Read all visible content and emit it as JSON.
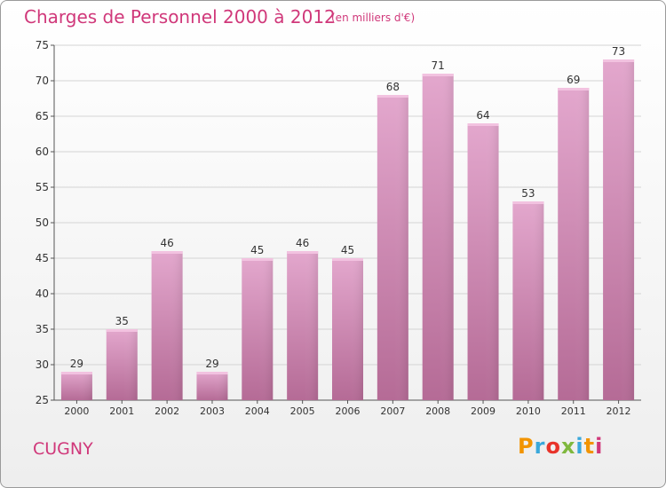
{
  "header": {
    "title": "Charges de Personnel 2000 à 2012",
    "subtitle": "(en milliers d'€)"
  },
  "commune": "CUGNY",
  "logo": {
    "text": "Proxiti",
    "colors": [
      "#f29400",
      "#3aa8db",
      "#e8332a",
      "#7fb83e",
      "#3aa8db",
      "#f29400",
      "#d0387a"
    ]
  },
  "colors": {
    "bar_light": "#f2c2e0",
    "bar_mid": "#e3a7cd",
    "bar_dark": "#b56b96",
    "text_accent": "#d0387a"
  },
  "chart_data": {
    "type": "bar",
    "categories": [
      "2000",
      "2001",
      "2002",
      "2003",
      "2004",
      "2005",
      "2006",
      "2007",
      "2008",
      "2009",
      "2010",
      "2011",
      "2012"
    ],
    "values": [
      29,
      35,
      46,
      29,
      45,
      46,
      45,
      68,
      71,
      64,
      53,
      69,
      73
    ],
    "ylim": [
      25,
      75
    ],
    "yticks": [
      25,
      30,
      35,
      40,
      45,
      50,
      55,
      60,
      65,
      70,
      75
    ],
    "grid": true,
    "title": "Charges de Personnel 2000 à 2012",
    "xlabel": "",
    "ylabel": ""
  }
}
